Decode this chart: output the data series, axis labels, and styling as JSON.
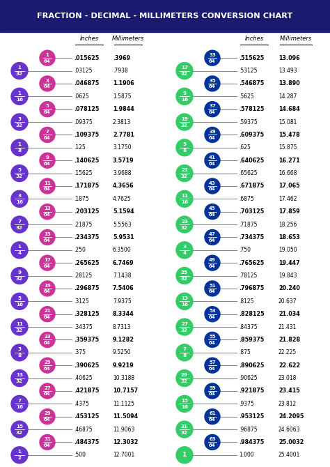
{
  "title": "FRACTION - DECIMAL - MILLIMETERS CONVERSION CHART",
  "title_bg": "#1a1a6e",
  "title_color": "#ffffff",
  "left_rows": [
    {
      "frac": "1/64",
      "type": "64ths",
      "inches": ".015625",
      "mm": ".3969",
      "bold": true
    },
    {
      "frac": "1/32",
      "type": "32nds",
      "inches": ".03125",
      "mm": ".7938",
      "bold": false
    },
    {
      "frac": "3/64",
      "type": "64ths",
      "inches": ".046875",
      "mm": "1.1906",
      "bold": true
    },
    {
      "frac": "1/16",
      "type": "16ths",
      "inches": ".0625",
      "mm": "1.5875",
      "bold": false
    },
    {
      "frac": "5/64",
      "type": "64ths",
      "inches": ".078125",
      "mm": "1.9844",
      "bold": true
    },
    {
      "frac": "3/32",
      "type": "32nds",
      "inches": ".09375",
      "mm": "2.3813",
      "bold": false
    },
    {
      "frac": "7/64",
      "type": "64ths",
      "inches": ".109375",
      "mm": "2.7781",
      "bold": true
    },
    {
      "frac": "1/8",
      "type": "8ths",
      "inches": ".125",
      "mm": "3.1750",
      "bold": false
    },
    {
      "frac": "9/64",
      "type": "64ths",
      "inches": ".140625",
      "mm": "3.5719",
      "bold": true
    },
    {
      "frac": "5/32",
      "type": "32nds",
      "inches": ".15625",
      "mm": "3.9688",
      "bold": false
    },
    {
      "frac": "11/64",
      "type": "64ths",
      "inches": ".171875",
      "mm": "4.3656",
      "bold": true
    },
    {
      "frac": "3/16",
      "type": "16ths",
      "inches": ".1875",
      "mm": "4.7625",
      "bold": false
    },
    {
      "frac": "13/64",
      "type": "64ths",
      "inches": ".203125",
      "mm": "5.1594",
      "bold": true
    },
    {
      "frac": "7/32",
      "type": "32nds",
      "inches": ".21875",
      "mm": "5.5563",
      "bold": false
    },
    {
      "frac": "15/64",
      "type": "64ths",
      "inches": ".234375",
      "mm": "5.9531",
      "bold": true
    },
    {
      "frac": "1/4",
      "type": "4ths",
      "inches": ".250",
      "mm": "6.3500",
      "bold": false
    },
    {
      "frac": "17/64",
      "type": "64ths",
      "inches": ".265625",
      "mm": "6.7469",
      "bold": true
    },
    {
      "frac": "9/32",
      "type": "32nds",
      "inches": ".28125",
      "mm": "7.1438",
      "bold": false
    },
    {
      "frac": "19/64",
      "type": "64ths",
      "inches": ".296875",
      "mm": "7.5406",
      "bold": true
    },
    {
      "frac": "5/16",
      "type": "16ths",
      "inches": ".3125",
      "mm": "7.9375",
      "bold": false
    },
    {
      "frac": "21/64",
      "type": "64ths",
      "inches": ".328125",
      "mm": "8.3344",
      "bold": true
    },
    {
      "frac": "11/32",
      "type": "32nds",
      "inches": ".34375",
      "mm": "8.7313",
      "bold": false
    },
    {
      "frac": "23/64",
      "type": "64ths",
      "inches": ".359375",
      "mm": "9.1282",
      "bold": true
    },
    {
      "frac": "3/8",
      "type": "8ths",
      "inches": ".375",
      "mm": "9.5250",
      "bold": false
    },
    {
      "frac": "25/64",
      "type": "64ths",
      "inches": ".390625",
      "mm": "9.9219",
      "bold": true
    },
    {
      "frac": "13/32",
      "type": "32nds",
      "inches": ".40625",
      "mm": "10.3188",
      "bold": false
    },
    {
      "frac": "27/64",
      "type": "64ths",
      "inches": ".421875",
      "mm": "10.7157",
      "bold": true
    },
    {
      "frac": "7/16",
      "type": "16ths",
      "inches": ".4375",
      "mm": "11.1125",
      "bold": false
    },
    {
      "frac": "29/64",
      "type": "64ths",
      "inches": ".453125",
      "mm": "11.5094",
      "bold": true
    },
    {
      "frac": "15/32",
      "type": "32nds",
      "inches": ".46875",
      "mm": "11.9063",
      "bold": false
    },
    {
      "frac": "31/64",
      "type": "64ths",
      "inches": ".484375",
      "mm": "12.3032",
      "bold": true
    },
    {
      "frac": "1/2",
      "type": "2nds",
      "inches": ".500",
      "mm": "12.7001",
      "bold": false
    }
  ],
  "right_rows": [
    {
      "frac": "33/64",
      "type": "64ths",
      "inches": ".515625",
      "mm": "13.096",
      "bold": true
    },
    {
      "frac": "17/32",
      "type": "32nds",
      "inches": ".53125",
      "mm": "13.493",
      "bold": false
    },
    {
      "frac": "35/64",
      "type": "64ths",
      "inches": ".546875",
      "mm": "13.890",
      "bold": true
    },
    {
      "frac": "9/16",
      "type": "16ths",
      "inches": ".5625",
      "mm": "14.287",
      "bold": false
    },
    {
      "frac": "37/64",
      "type": "64ths",
      "inches": ".578125",
      "mm": "14.684",
      "bold": true
    },
    {
      "frac": "19/32",
      "type": "32nds",
      "inches": ".59375",
      "mm": "15.081",
      "bold": false
    },
    {
      "frac": "39/64",
      "type": "64ths",
      "inches": ".609375",
      "mm": "15.478",
      "bold": true
    },
    {
      "frac": "5/8",
      "type": "8ths",
      "inches": ".625",
      "mm": "15.875",
      "bold": false
    },
    {
      "frac": "41/64",
      "type": "64ths",
      "inches": ".640625",
      "mm": "16.271",
      "bold": true
    },
    {
      "frac": "21/32",
      "type": "32nds",
      "inches": ".65625",
      "mm": "16.668",
      "bold": false
    },
    {
      "frac": "43/64",
      "type": "64ths",
      "inches": ".671875",
      "mm": "17.065",
      "bold": true
    },
    {
      "frac": "11/16",
      "type": "16ths",
      "inches": ".6875",
      "mm": "17.462",
      "bold": false
    },
    {
      "frac": "45/64",
      "type": "64ths",
      "inches": ".703125",
      "mm": "17.859",
      "bold": true
    },
    {
      "frac": "23/32",
      "type": "32nds",
      "inches": ".71875",
      "mm": "18.256",
      "bold": false
    },
    {
      "frac": "47/64",
      "type": "64ths",
      "inches": ".734375",
      "mm": "18.653",
      "bold": true
    },
    {
      "frac": "3/4",
      "type": "4ths",
      "inches": ".750",
      "mm": "19.050",
      "bold": false
    },
    {
      "frac": "49/64",
      "type": "64ths",
      "inches": ".765625",
      "mm": "19.447",
      "bold": true
    },
    {
      "frac": "25/32",
      "type": "32nds",
      "inches": ".78125",
      "mm": "19.843",
      "bold": false
    },
    {
      "frac": "51/64",
      "type": "64ths",
      "inches": ".796875",
      "mm": "20.240",
      "bold": true
    },
    {
      "frac": "13/16",
      "type": "16ths",
      "inches": ".8125",
      "mm": "20.637",
      "bold": false
    },
    {
      "frac": "53/64",
      "type": "64ths",
      "inches": ".828125",
      "mm": "21.034",
      "bold": true
    },
    {
      "frac": "27/32",
      "type": "32nds",
      "inches": ".84375",
      "mm": "21.431",
      "bold": false
    },
    {
      "frac": "55/64",
      "type": "64ths",
      "inches": ".859375",
      "mm": "21.828",
      "bold": true
    },
    {
      "frac": "7/8",
      "type": "8ths",
      "inches": ".875",
      "mm": "22.225",
      "bold": false
    },
    {
      "frac": "57/64",
      "type": "64ths",
      "inches": ".890625",
      "mm": "22.622",
      "bold": true
    },
    {
      "frac": "29/32",
      "type": "32nds",
      "inches": ".90625",
      "mm": "23.018",
      "bold": false
    },
    {
      "frac": "59/64",
      "type": "64ths",
      "inches": ".921875",
      "mm": "23.415",
      "bold": true
    },
    {
      "frac": "15/16",
      "type": "16ths",
      "inches": ".9375",
      "mm": "23.812",
      "bold": false
    },
    {
      "frac": "61/64",
      "type": "64ths",
      "inches": ".953125",
      "mm": "24.2095",
      "bold": true
    },
    {
      "frac": "31/32",
      "type": "32nds",
      "inches": ".96875",
      "mm": "24.6063",
      "bold": false
    },
    {
      "frac": "63/64",
      "type": "64ths",
      "inches": ".984375",
      "mm": "25.0032",
      "bold": true
    },
    {
      "frac": "1",
      "type": "1",
      "inches": "1.000",
      "mm": "25.4001",
      "bold": false
    }
  ],
  "left_64_color": "#cc3399",
  "left_other_color": "#6633cc",
  "right_64_color": "#003399",
  "right_other_color": "#33cc66",
  "bg_color": "#ffffff"
}
